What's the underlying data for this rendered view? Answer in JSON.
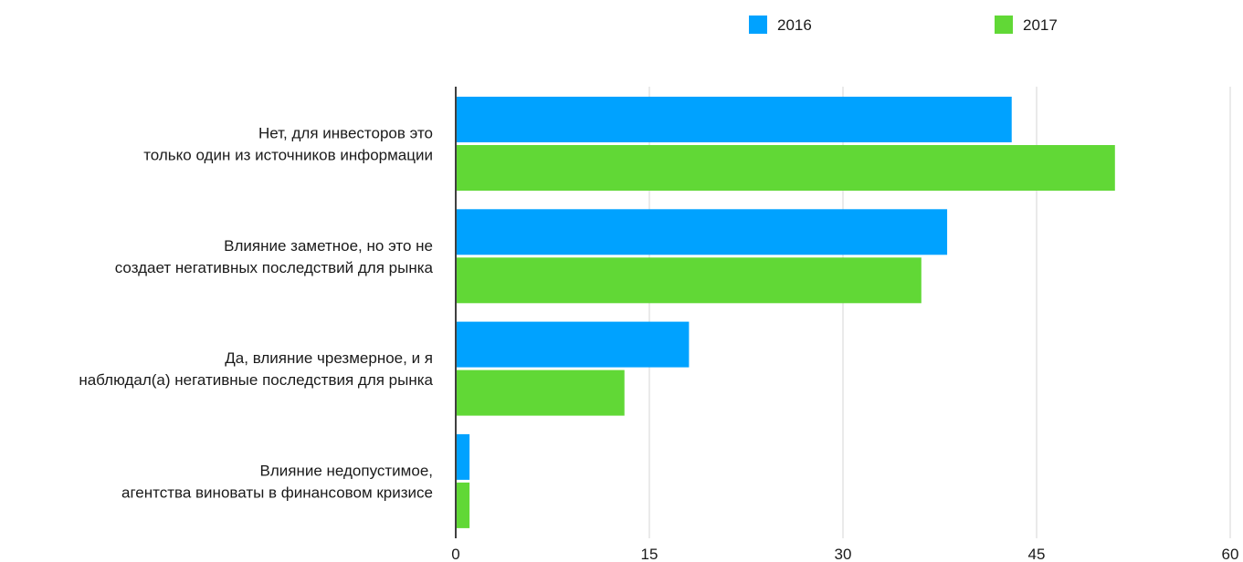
{
  "chart_data": {
    "type": "bar",
    "orientation": "horizontal",
    "categories": [
      [
        "Нет, для инвесторов это",
        "только один из источников информации"
      ],
      [
        "Влияние заметное, но это не",
        "создает негативных последствий для рынка"
      ],
      [
        "Да, влияние чрезмерное, и я",
        "наблюдал(а) негативные последствия для рынка"
      ],
      [
        "Влияние недопустимое,",
        "агентства виноваты в финансовом кризисе"
      ]
    ],
    "series": [
      {
        "name": "2016",
        "color": "#00a2ff",
        "values": [
          43,
          38,
          18,
          1
        ]
      },
      {
        "name": "2017",
        "color": "#61d836",
        "values": [
          51,
          36,
          13,
          1
        ]
      }
    ],
    "xlim": [
      0,
      60
    ],
    "xticks": [
      "0",
      "15",
      "30",
      "45",
      "60"
    ],
    "grid": true,
    "legend_position": "top-right"
  }
}
